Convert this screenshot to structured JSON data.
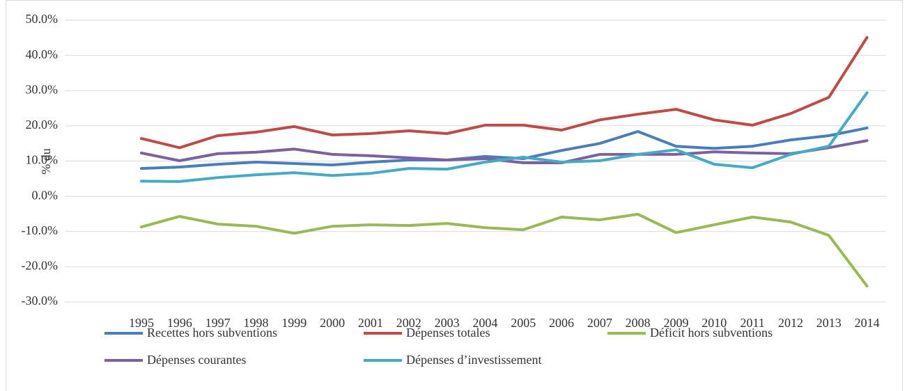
{
  "chart_data": {
    "type": "line",
    "y_label": "% du",
    "categories": [
      "1995",
      "1996",
      "1997",
      "1998",
      "1999",
      "2000",
      "2001",
      "2002",
      "2003",
      "2004",
      "2005",
      "2006",
      "2007",
      "2008",
      "2009",
      "2010",
      "2011",
      "2012",
      "2013",
      "2014"
    ],
    "series": [
      {
        "name": "Recettes hors subventions",
        "color": "#4a7ebb",
        "values": [
          7.9,
          8.3,
          9.1,
          9.7,
          9.3,
          8.9,
          9.7,
          10.3,
          10.3,
          11.3,
          10.7,
          13.0,
          15.0,
          18.4,
          14.2,
          13.6,
          14.2,
          16.0,
          17.2,
          19.4
        ]
      },
      {
        "name": "Dépenses totales",
        "color": "#be4b48",
        "values": [
          16.4,
          13.8,
          17.2,
          18.2,
          19.8,
          17.4,
          17.8,
          18.6,
          17.8,
          20.2,
          20.2,
          18.8,
          21.7,
          23.3,
          24.7,
          21.7,
          20.2,
          23.5,
          28.1,
          45.1
        ]
      },
      {
        "name": "Déficit hors subventions",
        "color": "#98b954",
        "values": [
          -8.7,
          -5.7,
          -7.9,
          -8.5,
          -10.5,
          -8.5,
          -8.1,
          -8.3,
          -7.7,
          -8.9,
          -9.5,
          -5.9,
          -6.7,
          -5.1,
          -10.3,
          -8.1,
          -5.9,
          -7.3,
          -11.1,
          -25.5
        ]
      },
      {
        "name": "Dépenses courantes",
        "color": "#7d60a0",
        "values": [
          12.3,
          10.1,
          12.1,
          12.5,
          13.4,
          11.9,
          11.5,
          10.9,
          10.3,
          10.7,
          9.5,
          9.5,
          11.9,
          11.9,
          11.9,
          12.6,
          12.3,
          12.1,
          13.8,
          15.8
        ]
      },
      {
        "name": "Dépenses d’investissement",
        "color": "#46aac5",
        "values": [
          4.3,
          4.2,
          5.3,
          6.1,
          6.7,
          5.9,
          6.5,
          7.9,
          7.7,
          9.7,
          11.1,
          9.7,
          10.1,
          11.9,
          13.2,
          9.1,
          8.1,
          11.9,
          14.2,
          29.4
        ]
      }
    ],
    "ylim": [
      -30,
      50
    ],
    "yticks": [
      {
        "value": -30,
        "label": "-30.0%"
      },
      {
        "value": -20,
        "label": "-20.0%"
      },
      {
        "value": -10,
        "label": "-10.0%"
      },
      {
        "value": 0,
        "label": "0.0%"
      },
      {
        "value": 10,
        "label": "10.0%"
      },
      {
        "value": 20,
        "label": "20.0%"
      },
      {
        "value": 30,
        "label": "30.0%"
      },
      {
        "value": 40,
        "label": "40.0%"
      },
      {
        "value": 50,
        "label": "50.0%"
      }
    ],
    "grid": true,
    "legend": "bottom"
  }
}
